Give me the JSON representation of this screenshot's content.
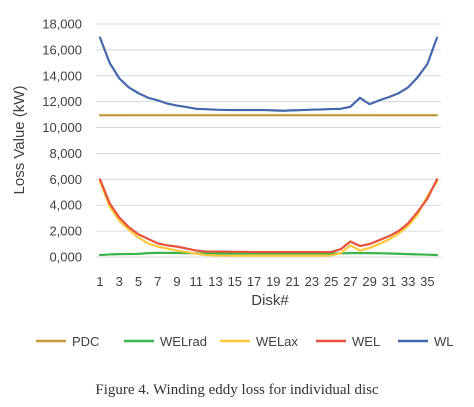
{
  "chart_data": {
    "type": "line",
    "xlabel": "Disk#",
    "ylabel": "Loss Value (kW)",
    "ylim": [
      0,
      18000
    ],
    "yticks": [
      "0,000",
      "2,000",
      "4,000",
      "6,000",
      "8,000",
      "10,000",
      "12,000",
      "14,000",
      "16,000",
      "18,000"
    ],
    "xticks": [
      1,
      3,
      5,
      7,
      9,
      11,
      13,
      15,
      17,
      19,
      21,
      23,
      25,
      27,
      29,
      31,
      33,
      35
    ],
    "x": [
      1,
      2,
      3,
      4,
      5,
      6,
      7,
      8,
      9,
      10,
      11,
      12,
      13,
      14,
      15,
      16,
      17,
      18,
      19,
      20,
      21,
      22,
      23,
      24,
      25,
      26,
      27,
      28,
      29,
      30,
      31,
      32,
      33,
      34,
      35,
      36
    ],
    "grid": true,
    "legend_position": "bottom",
    "series": [
      {
        "name": "PDC",
        "color": "#c49a3c",
        "values": [
          10950,
          10950,
          10950,
          10950,
          10950,
          10950,
          10950,
          10950,
          10950,
          10950,
          10950,
          10950,
          10950,
          10950,
          10950,
          10950,
          10950,
          10950,
          10950,
          10950,
          10950,
          10950,
          10950,
          10950,
          10950,
          10950,
          10950,
          10950,
          10950,
          10950,
          10950,
          10950,
          10950,
          10950,
          10950,
          10950
        ]
      },
      {
        "name": "WELrad",
        "color": "#3cb44b",
        "values": [
          150,
          200,
          220,
          230,
          240,
          300,
          320,
          320,
          310,
          300,
          280,
          270,
          270,
          270,
          270,
          270,
          270,
          270,
          270,
          270,
          270,
          270,
          270,
          270,
          270,
          280,
          300,
          310,
          300,
          290,
          270,
          250,
          220,
          200,
          180,
          150
        ]
      },
      {
        "name": "WELax",
        "color": "#ffc83c",
        "values": [
          5850,
          3900,
          2800,
          2100,
          1500,
          1050,
          800,
          650,
          500,
          380,
          250,
          150,
          120,
          110,
          100,
          100,
          100,
          100,
          100,
          100,
          100,
          100,
          100,
          100,
          120,
          300,
          900,
          500,
          700,
          1000,
          1350,
          1800,
          2400,
          3300,
          4700,
          5850
        ]
      },
      {
        "name": "WEL",
        "color": "#e5533d",
        "values": [
          6000,
          4150,
          3050,
          2300,
          1750,
          1400,
          1050,
          900,
          800,
          650,
          500,
          420,
          420,
          420,
          400,
          400,
          380,
          380,
          380,
          380,
          380,
          380,
          380,
          380,
          380,
          600,
          1200,
          850,
          1000,
          1300,
          1600,
          2000,
          2600,
          3500,
          4500,
          6000
        ]
      },
      {
        "name": "WL",
        "color": "#4567ad",
        "values": [
          16950,
          15000,
          13800,
          13100,
          12650,
          12300,
          12100,
          11850,
          11700,
          11580,
          11450,
          11420,
          11380,
          11360,
          11350,
          11350,
          11350,
          11350,
          11330,
          11300,
          11330,
          11350,
          11380,
          11400,
          11430,
          11450,
          11600,
          12300,
          11800,
          12100,
          12350,
          12650,
          13100,
          13900,
          14900,
          16950
        ]
      }
    ]
  },
  "caption": "Figure 4.   Winding eddy loss for individual disc"
}
